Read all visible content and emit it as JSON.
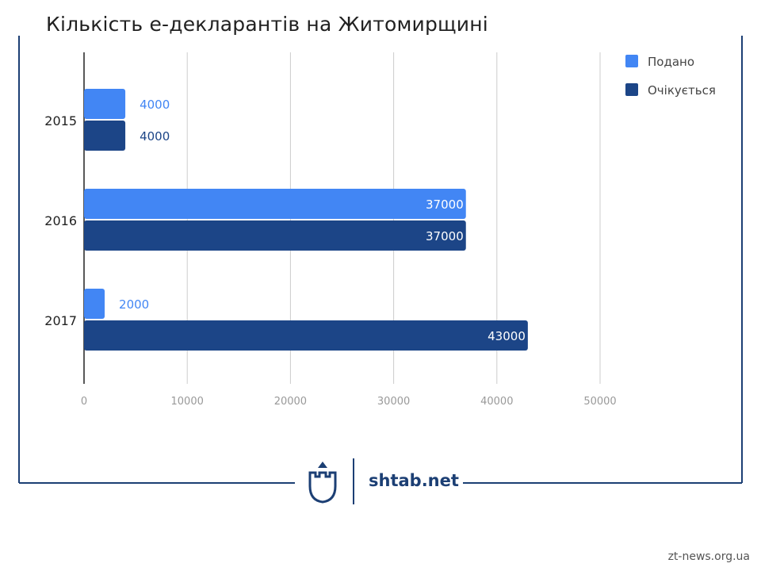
{
  "title": "Кількість е-декларантів на Житомирщині",
  "brand": {
    "name": "shtab.net",
    "color": "#1c3f74",
    "icon": "castle-tower-icon"
  },
  "watermark": "zt-news.org.ua",
  "colors": {
    "submitted": "#4286f4",
    "expected": "#1c4587",
    "grid": "#cccccc",
    "axis": "#222222"
  },
  "chart_data": {
    "type": "bar",
    "orientation": "horizontal",
    "title": "Кількість е-декларантів на Житомирщині",
    "categories": [
      "2015",
      "2016",
      "2017"
    ],
    "series": [
      {
        "name": "Подано",
        "color": "#4286f4",
        "values": [
          4000,
          37000,
          2000
        ]
      },
      {
        "name": "Очікується",
        "color": "#1c4587",
        "values": [
          4000,
          37000,
          43000
        ]
      }
    ],
    "xlim": [
      0,
      50000
    ],
    "x_ticks": [
      0,
      10000,
      20000,
      30000,
      40000,
      50000
    ],
    "grid": true,
    "legend": "top-right",
    "data_labels": true
  }
}
